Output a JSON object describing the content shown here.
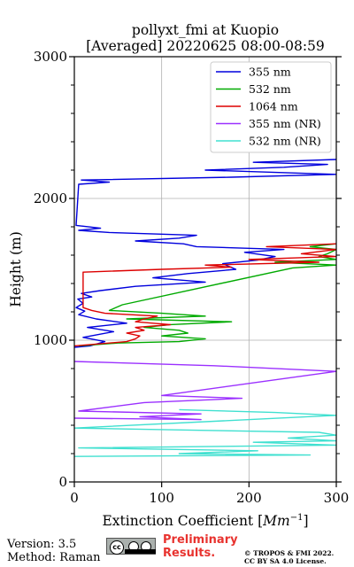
{
  "footer": {
    "version": "Version: 3.5",
    "method": "Method: Raman",
    "preliminary_line1": "Preliminary",
    "preliminary_line2": "Results.",
    "copyright_line1": "© TROPOS & FMI 2022.",
    "copyright_line2": "CC BY SA 4.0 License.",
    "badge": "cc-by-sa-icon"
  },
  "chart_data": {
    "type": "line",
    "title": [
      "pollyxt_fmi at Kuopio",
      "[Averaged] 20220625 08:00-08:59"
    ],
    "xlabel": "Extinction Coefficient [Mm^-1]",
    "ylabel": "Height (m)",
    "xlim": [
      0,
      300
    ],
    "ylim": [
      0,
      3000
    ],
    "xticks": [
      0,
      100,
      200,
      300
    ],
    "yticks": [
      0,
      1000,
      2000,
      3000
    ],
    "grid": true,
    "legend_position": "top-right",
    "series": [
      {
        "name": "355 nm",
        "color": "#0000dd",
        "points": [
          [
            0,
            950
          ],
          [
            18,
            960
          ],
          [
            35,
            990
          ],
          [
            10,
            1020
          ],
          [
            45,
            1060
          ],
          [
            15,
            1090
          ],
          [
            60,
            1120
          ],
          [
            25,
            1150
          ],
          [
            5,
            1180
          ],
          [
            12,
            1205
          ],
          [
            2,
            1230
          ],
          [
            10,
            1260
          ],
          [
            4,
            1290
          ],
          [
            20,
            1305
          ],
          [
            8,
            1330
          ],
          [
            30,
            1350
          ],
          [
            70,
            1380
          ],
          [
            150,
            1410
          ],
          [
            90,
            1440
          ],
          [
            130,
            1470
          ],
          [
            185,
            1500
          ],
          [
            170,
            1540
          ],
          [
            210,
            1565
          ],
          [
            230,
            1590
          ],
          [
            195,
            1620
          ],
          [
            240,
            1640
          ],
          [
            140,
            1660
          ],
          [
            125,
            1680
          ],
          [
            70,
            1700
          ],
          [
            120,
            1720
          ],
          [
            140,
            1740
          ],
          [
            40,
            1760
          ],
          [
            5,
            1775
          ],
          [
            30,
            1790
          ],
          [
            2,
            1810
          ],
          [
            5,
            2100
          ],
          [
            40,
            2115
          ],
          [
            8,
            2130
          ],
          [
            180,
            2150
          ],
          [
            300,
            2170
          ],
          [
            150,
            2200
          ],
          [
            240,
            2220
          ],
          [
            290,
            2240
          ],
          [
            205,
            2255
          ],
          [
            300,
            2275
          ]
        ]
      },
      {
        "name": "532 nm",
        "color": "#00aa00",
        "points": [
          [
            5,
            960
          ],
          [
            50,
            980
          ],
          [
            120,
            990
          ],
          [
            150,
            1010
          ],
          [
            100,
            1030
          ],
          [
            130,
            1050
          ],
          [
            120,
            1070
          ],
          [
            80,
            1090
          ],
          [
            110,
            1110
          ],
          [
            180,
            1130
          ],
          [
            60,
            1150
          ],
          [
            150,
            1170
          ],
          [
            100,
            1190
          ],
          [
            40,
            1210
          ],
          [
            55,
            1250
          ],
          [
            250,
            1510
          ],
          [
            300,
            1530
          ],
          [
            230,
            1550
          ],
          [
            300,
            1570
          ],
          [
            280,
            1590
          ],
          [
            290,
            1610
          ],
          [
            300,
            1640
          ],
          [
            270,
            1660
          ],
          [
            300,
            1680
          ]
        ]
      },
      {
        "name": "1064 nm",
        "color": "#dd0000",
        "points": [
          [
            0,
            960
          ],
          [
            20,
            970
          ],
          [
            60,
            990
          ],
          [
            70,
            1010
          ],
          [
            75,
            1030
          ],
          [
            60,
            1050
          ],
          [
            80,
            1070
          ],
          [
            70,
            1090
          ],
          [
            110,
            1110
          ],
          [
            70,
            1130
          ],
          [
            80,
            1150
          ],
          [
            95,
            1170
          ],
          [
            35,
            1190
          ],
          [
            20,
            1210
          ],
          [
            10,
            1230
          ],
          [
            10,
            1480
          ],
          [
            100,
            1500
          ],
          [
            180,
            1515
          ],
          [
            150,
            1530
          ],
          [
            280,
            1550
          ],
          [
            200,
            1570
          ],
          [
            300,
            1590
          ],
          [
            260,
            1610
          ],
          [
            300,
            1640
          ],
          [
            220,
            1660
          ],
          [
            300,
            1680
          ]
        ]
      },
      {
        "name": "355 nm (NR)",
        "color": "#9b30ff",
        "points": [
          [
            0,
            450
          ],
          [
            145,
            440
          ],
          [
            75,
            460
          ],
          [
            145,
            480
          ],
          [
            5,
            500
          ],
          [
            80,
            560
          ],
          [
            192,
            590
          ],
          [
            100,
            610
          ],
          [
            300,
            780
          ],
          [
            160,
            820
          ],
          [
            0,
            850
          ]
        ]
      },
      {
        "name": "532 nm (NR)",
        "color": "#40e0d0",
        "points": [
          [
            0,
            180
          ],
          [
            270,
            190
          ],
          [
            120,
            200
          ],
          [
            210,
            220
          ],
          [
            5,
            240
          ],
          [
            300,
            260
          ],
          [
            205,
            280
          ],
          [
            300,
            290
          ],
          [
            245,
            310
          ],
          [
            300,
            330
          ],
          [
            280,
            350
          ],
          [
            0,
            380
          ],
          [
            300,
            470
          ],
          [
            230,
            490
          ],
          [
            120,
            510
          ]
        ]
      }
    ]
  }
}
